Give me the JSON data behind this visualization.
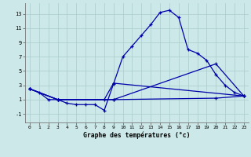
{
  "title": "Graphe des températures (°c)",
  "bg": "#cce8e8",
  "grid_color": "#aacccc",
  "lc": "#0000aa",
  "x_ticks": [
    0,
    1,
    2,
    3,
    4,
    5,
    6,
    7,
    8,
    9,
    10,
    11,
    12,
    13,
    14,
    15,
    16,
    17,
    18,
    19,
    20,
    21,
    22,
    23
  ],
  "y_ticks": [
    -1,
    1,
    3,
    5,
    7,
    9,
    11,
    13
  ],
  "ylim": [
    -2.2,
    14.5
  ],
  "xlim": [
    -0.5,
    23.5
  ],
  "main_x": [
    0,
    1,
    2,
    3,
    4,
    5,
    6,
    7,
    8,
    9,
    10,
    11,
    12,
    13,
    14,
    15,
    16,
    17,
    18,
    19,
    20,
    21,
    22,
    23
  ],
  "main_y": [
    2.5,
    2.0,
    1.0,
    1.0,
    0.5,
    0.3,
    0.3,
    0.3,
    -0.5,
    3.2,
    7.0,
    8.5,
    10.0,
    11.5,
    13.2,
    13.5,
    12.5,
    8.0,
    7.5,
    6.5,
    4.5,
    3.0,
    2.0,
    1.5
  ],
  "line1_x": [
    0,
    3,
    9,
    23
  ],
  "line1_y": [
    2.5,
    1.0,
    3.2,
    1.5
  ],
  "line2_x": [
    0,
    3,
    8,
    9,
    23
  ],
  "line2_y": [
    2.5,
    1.0,
    1.0,
    3.3,
    1.5
  ],
  "line3_x": [
    0,
    3,
    9,
    20,
    23
  ],
  "line3_y": [
    2.5,
    1.0,
    1.0,
    6.0,
    1.5
  ],
  "line4_x": [
    0,
    3,
    9,
    20,
    23
  ],
  "line4_y": [
    2.5,
    1.0,
    1.0,
    1.2,
    1.5
  ]
}
